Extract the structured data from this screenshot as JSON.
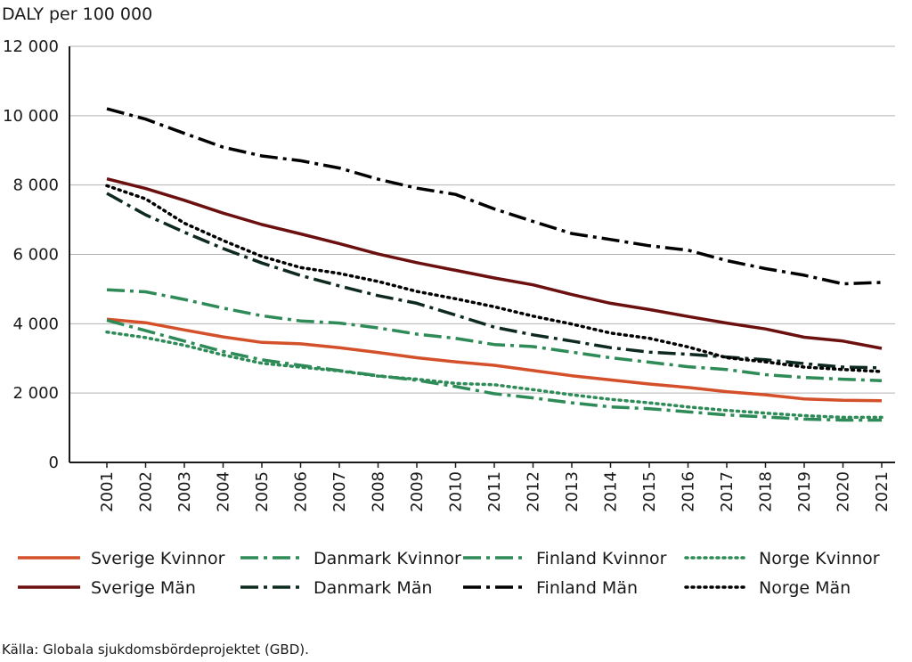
{
  "chart_data": {
    "type": "line",
    "ylabel": "DALY per 100 000",
    "ylim": [
      0,
      12000
    ],
    "yticks": [
      0,
      2000,
      4000,
      6000,
      8000,
      10000,
      12000
    ],
    "ytick_labels": [
      "0",
      "2 000",
      "4 000",
      "6 000",
      "8 000",
      "10 000",
      "12 000"
    ],
    "grid": true,
    "x": [
      "2001",
      "2002",
      "2003",
      "2004",
      "2005",
      "2006",
      "2007",
      "2008",
      "2009",
      "2010",
      "2011",
      "2012",
      "2013",
      "2014",
      "2015",
      "2016",
      "2017",
      "2018",
      "2019",
      "2020",
      "2021"
    ],
    "series": [
      {
        "key": "sverige-kvinnor",
        "name": "Sverige Kvinnor",
        "color": "#d4502a",
        "style": "solid",
        "values": [
          4130,
          4030,
          3820,
          3620,
          3460,
          3420,
          3310,
          3170,
          3020,
          2900,
          2800,
          2650,
          2500,
          2380,
          2260,
          2160,
          2040,
          1950,
          1830,
          1790,
          1780
        ]
      },
      {
        "key": "danmark-kvinnor",
        "name": "Danmark Kvinnor",
        "color": "#2e8b57",
        "style": "dashdot",
        "values": [
          4100,
          3800,
          3500,
          3200,
          2960,
          2800,
          2650,
          2500,
          2370,
          2190,
          1980,
          1860,
          1720,
          1600,
          1550,
          1460,
          1370,
          1310,
          1250,
          1220,
          1220
        ]
      },
      {
        "key": "finland-kvinnor",
        "name": "Finland Kvinnor",
        "color": "#2e8b57",
        "style": "dashdot",
        "values": [
          4980,
          4920,
          4700,
          4450,
          4230,
          4080,
          4020,
          3880,
          3700,
          3580,
          3400,
          3340,
          3180,
          3020,
          2890,
          2760,
          2680,
          2530,
          2450,
          2400,
          2360
        ]
      },
      {
        "key": "norge-kvinnor",
        "name": "Norge Kvinnor",
        "color": "#2e8b57",
        "style": "dotted",
        "values": [
          3760,
          3600,
          3380,
          3100,
          2860,
          2750,
          2640,
          2490,
          2400,
          2280,
          2240,
          2100,
          1950,
          1820,
          1720,
          1600,
          1500,
          1420,
          1350,
          1300,
          1300
        ]
      },
      {
        "key": "sverige-man",
        "name": "Sverige Män",
        "color": "#6b0f0f",
        "style": "solid",
        "values": [
          8180,
          7900,
          7560,
          7190,
          6860,
          6590,
          6310,
          6010,
          5760,
          5540,
          5320,
          5120,
          4840,
          4590,
          4410,
          4210,
          4020,
          3850,
          3610,
          3500,
          3290
        ]
      },
      {
        "key": "danmark-man",
        "name": "Danmark Män",
        "color": "#0e2a1e",
        "style": "dashdot",
        "values": [
          7760,
          7140,
          6640,
          6170,
          5750,
          5390,
          5090,
          4810,
          4590,
          4250,
          3900,
          3680,
          3500,
          3310,
          3180,
          3120,
          3040,
          2960,
          2850,
          2750,
          2730
        ]
      },
      {
        "key": "finland-man",
        "name": "Finland Män",
        "color": "#000000",
        "style": "dashdot",
        "values": [
          10200,
          9900,
          9490,
          9090,
          8840,
          8700,
          8490,
          8170,
          7910,
          7730,
          7310,
          6950,
          6600,
          6430,
          6250,
          6120,
          5820,
          5590,
          5400,
          5150,
          5190
        ]
      },
      {
        "key": "norge-man",
        "name": "Norge Män",
        "color": "#000000",
        "style": "dotted",
        "values": [
          7980,
          7600,
          6900,
          6400,
          5940,
          5620,
          5450,
          5220,
          4930,
          4720,
          4490,
          4220,
          3990,
          3730,
          3580,
          3330,
          3020,
          2900,
          2750,
          2680,
          2620
        ]
      }
    ]
  },
  "legend": {
    "row1": [
      "Sverige Kvinnor",
      "Danmark Kvinnor",
      "Finland Kvinnor",
      "Norge Kvinnor"
    ],
    "row2": [
      "Sverige Män",
      "Danmark Män",
      "Finland Män",
      "Norge Män"
    ]
  },
  "source": "Källa: Globala sjukdomsbördeprojektet (GBD)."
}
